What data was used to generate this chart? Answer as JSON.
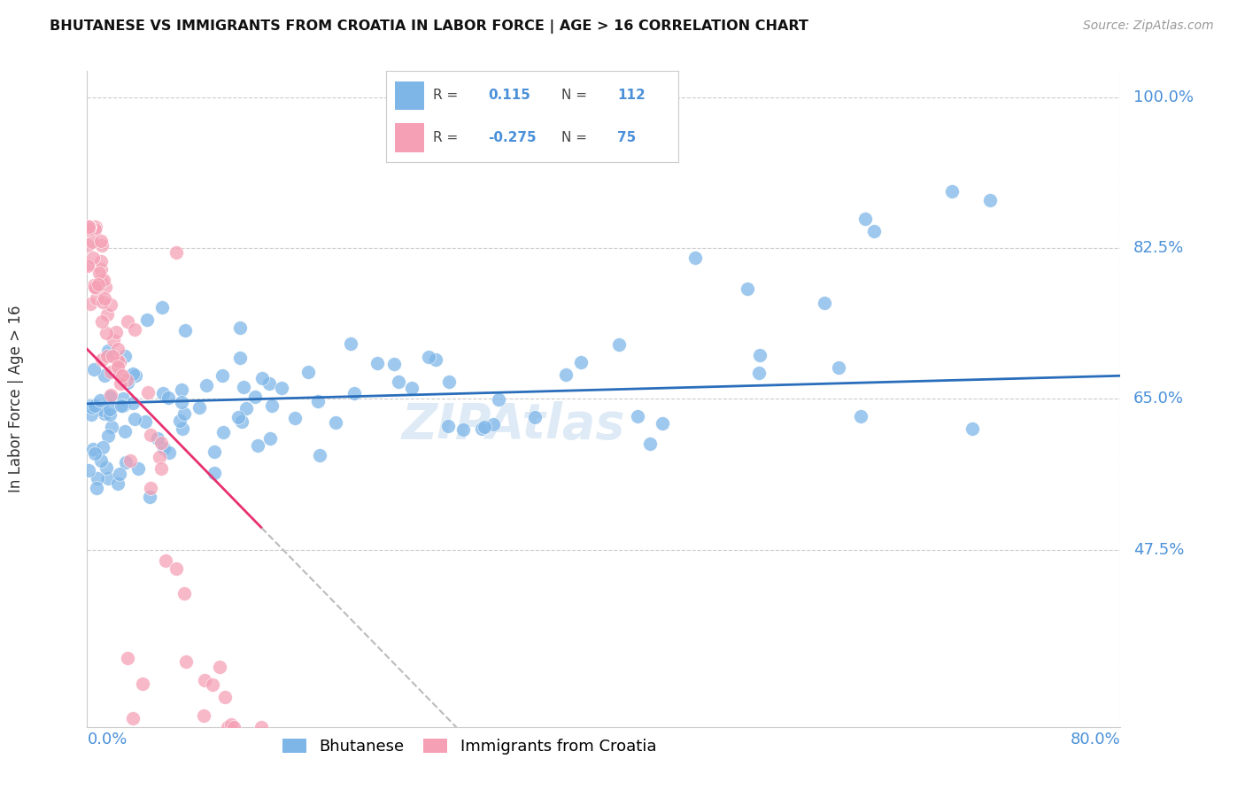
{
  "title": "BHUTANESE VS IMMIGRANTS FROM CROATIA IN LABOR FORCE | AGE > 16 CORRELATION CHART",
  "source": "Source: ZipAtlas.com",
  "ylabel": "In Labor Force | Age > 16",
  "x_min": 0.0,
  "x_max": 80.0,
  "y_min": 27.0,
  "y_max": 103.0,
  "ytick_values": [
    47.5,
    65.0,
    82.5,
    100.0
  ],
  "ytick_labels": [
    "47.5%",
    "65.0%",
    "82.5%",
    "100.0%"
  ],
  "blue_color": "#7EB6E8",
  "pink_color": "#F5A0B5",
  "blue_line_color": "#2A6EBB",
  "pink_line_color": "#E83070",
  "gray_dash_color": "#BBBBBB",
  "text_color": "#4A90D9",
  "legend_R_blue": "0.115",
  "legend_N_blue": "112",
  "legend_R_pink": "-0.275",
  "legend_N_pink": "75",
  "blue_R": 0.115,
  "pink_R": -0.275,
  "watermark": "ZIPAtlas",
  "legend_label_blue": "Bhutanese",
  "legend_label_pink": "Immigrants from Croatia"
}
